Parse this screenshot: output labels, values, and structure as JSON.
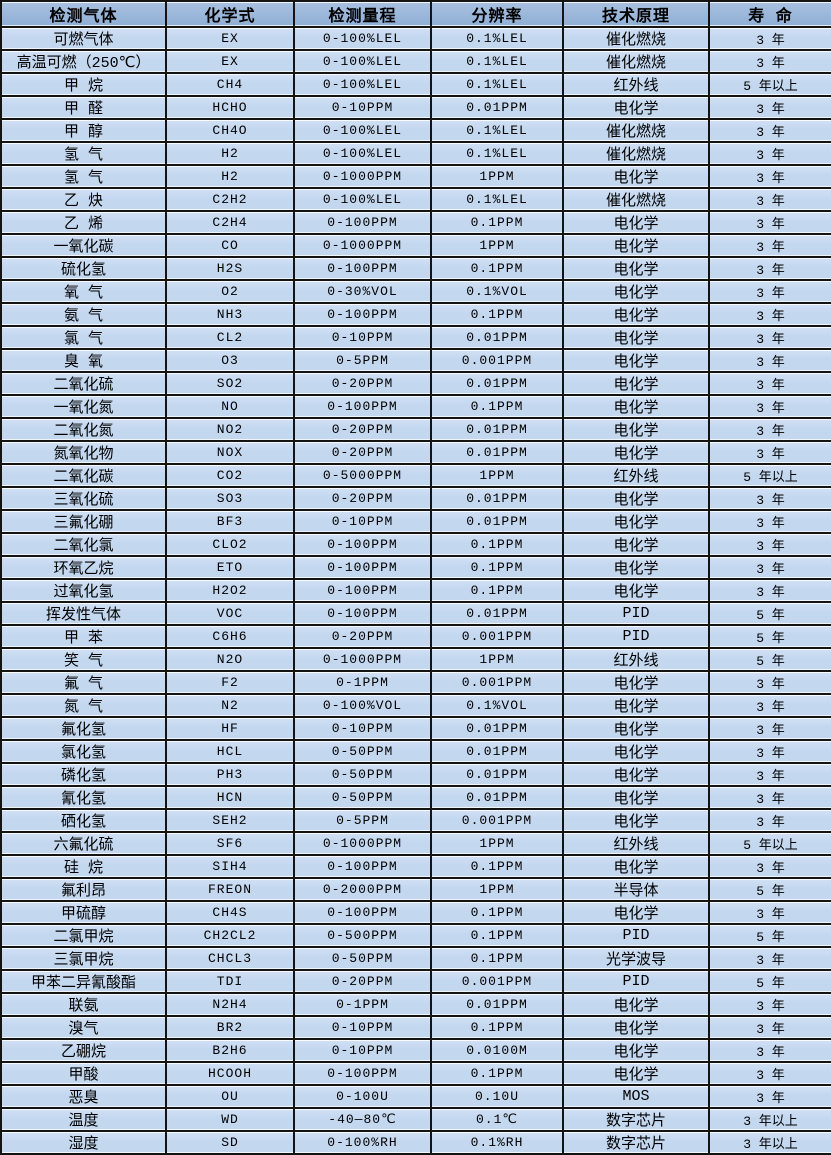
{
  "table": {
    "colors": {
      "header_bg": "#95b3d7",
      "row_bg": "#c5d9f1",
      "border": "#141414",
      "text": "#000000"
    },
    "headers": [
      "检测气体",
      "化学式",
      "检测量程",
      "分辨率",
      "技术原理",
      "寿 命"
    ],
    "column_keys": [
      "gas-name",
      "formula",
      "range",
      "resolution",
      "principle",
      "lifespan"
    ],
    "rows": [
      [
        "可燃气体",
        "EX",
        "0-100%LEL",
        "0.1%LEL",
        "催化燃烧",
        "3 年"
      ],
      [
        "高温可燃（250℃）",
        "EX",
        "0-100%LEL",
        "0.1%LEL",
        "催化燃烧",
        "3 年"
      ],
      [
        "甲 烷",
        "CH4",
        "0-100%LEL",
        "0.1%LEL",
        "红外线",
        "5 年以上"
      ],
      [
        "甲 醛",
        "HCHO",
        "0-10PPM",
        "0.01PPM",
        "电化学",
        "3 年"
      ],
      [
        "甲 醇",
        "CH4O",
        "0-100%LEL",
        "0.1%LEL",
        "催化燃烧",
        "3 年"
      ],
      [
        "氢 气",
        "H2",
        "0-100%LEL",
        "0.1%LEL",
        "催化燃烧",
        "3 年"
      ],
      [
        "氢 气",
        "H2",
        "0-1000PPM",
        "1PPM",
        "电化学",
        "3 年"
      ],
      [
        "乙 炔",
        "C2H2",
        "0-100%LEL",
        "0.1%LEL",
        "催化燃烧",
        "3 年"
      ],
      [
        "乙 烯",
        "C2H4",
        "0-100PPM",
        "0.1PPM",
        "电化学",
        "3 年"
      ],
      [
        "一氧化碳",
        "CO",
        "0-1000PPM",
        "1PPM",
        "电化学",
        "3 年"
      ],
      [
        "硫化氢",
        "H2S",
        "0-100PPM",
        "0.1PPM",
        "电化学",
        "3 年"
      ],
      [
        "氧 气",
        "O2",
        "0-30%VOL",
        "0.1%VOL",
        "电化学",
        "3 年"
      ],
      [
        "氨 气",
        "NH3",
        "0-100PPM",
        "0.1PPM",
        "电化学",
        "3 年"
      ],
      [
        "氯 气",
        "CL2",
        "0-10PPM",
        "0.01PPM",
        "电化学",
        "3 年"
      ],
      [
        "臭 氧",
        "O3",
        "0-5PPM",
        "0.001PPM",
        "电化学",
        "3 年"
      ],
      [
        "二氧化硫",
        "SO2",
        "0-20PPM",
        "0.01PPM",
        "电化学",
        "3 年"
      ],
      [
        "一氧化氮",
        "NO",
        "0-100PPM",
        "0.1PPM",
        "电化学",
        "3 年"
      ],
      [
        "二氧化氮",
        "NO2",
        "0-20PPM",
        "0.01PPM",
        "电化学",
        "3 年"
      ],
      [
        "氮氧化物",
        "NOX",
        "0-20PPM",
        "0.01PPM",
        "电化学",
        "3 年"
      ],
      [
        "二氧化碳",
        "CO2",
        "0-5000PPM",
        "1PPM",
        "红外线",
        "5 年以上"
      ],
      [
        "三氧化硫",
        "SO3",
        "0-20PPM",
        "0.01PPM",
        "电化学",
        "3 年"
      ],
      [
        "三氟化硼",
        "BF3",
        "0-10PPM",
        "0.01PPM",
        "电化学",
        "3 年"
      ],
      [
        "二氧化氯",
        "CLO2",
        "0-100PPM",
        "0.1PPM",
        "电化学",
        "3 年"
      ],
      [
        "环氧乙烷",
        "ETO",
        "0-100PPM",
        "0.1PPM",
        "电化学",
        "3 年"
      ],
      [
        "过氧化氢",
        "H2O2",
        "0-100PPM",
        "0.1PPM",
        "电化学",
        "3 年"
      ],
      [
        "挥发性气体",
        "VOC",
        "0-100PPM",
        "0.01PPM",
        "PID",
        "5 年"
      ],
      [
        "甲 苯",
        "C6H6",
        "0-20PPM",
        "0.001PPM",
        "PID",
        "5 年"
      ],
      [
        "笑 气",
        "N2O",
        "0-1000PPM",
        "1PPM",
        "红外线",
        "5 年"
      ],
      [
        "氟 气",
        "F2",
        "0-1PPM",
        "0.001PPM",
        "电化学",
        "3 年"
      ],
      [
        "氮 气",
        "N2",
        "0-100%VOL",
        "0.1%VOL",
        "电化学",
        "3 年"
      ],
      [
        "氟化氢",
        "HF",
        "0-10PPM",
        "0.01PPM",
        "电化学",
        "3 年"
      ],
      [
        "氯化氢",
        "HCL",
        "0-50PPM",
        "0.01PPM",
        "电化学",
        "3 年"
      ],
      [
        "磷化氢",
        "PH3",
        "0-50PPM",
        "0.01PPM",
        "电化学",
        "3 年"
      ],
      [
        "氰化氢",
        "HCN",
        "0-50PPM",
        "0.01PPM",
        "电化学",
        "3 年"
      ],
      [
        "硒化氢",
        "SEH2",
        "0-5PPM",
        "0.001PPM",
        "电化学",
        "3 年"
      ],
      [
        "六氟化硫",
        "SF6",
        "0-1000PPM",
        "1PPM",
        "红外线",
        "5 年以上"
      ],
      [
        "硅 烷",
        "SIH4",
        "0-100PPM",
        "0.1PPM",
        "电化学",
        "3 年"
      ],
      [
        "氟利昂",
        "FREON",
        "0-2000PPM",
        "1PPM",
        "半导体",
        "5 年"
      ],
      [
        "甲硫醇",
        "CH4S",
        "0-100PPM",
        "0.1PPM",
        "电化学",
        "3 年"
      ],
      [
        "二氯甲烷",
        "CH2CL2",
        "0-500PPM",
        "0.1PPM",
        "PID",
        "5 年"
      ],
      [
        "三氯甲烷",
        "CHCL3",
        "0-50PPM",
        "0.1PPM",
        "光学波导",
        "3 年"
      ],
      [
        "甲苯二异氰酸酯",
        "TDI",
        "0-20PPM",
        "0.001PPM",
        "PID",
        "5 年"
      ],
      [
        "联氨",
        "N2H4",
        "0-1PPM",
        "0.01PPM",
        "电化学",
        "3 年"
      ],
      [
        "溴气",
        "BR2",
        "0-10PPM",
        "0.1PPM",
        "电化学",
        "3 年"
      ],
      [
        "乙硼烷",
        "B2H6",
        "0-10PPM",
        "0.0100M",
        "电化学",
        "3 年"
      ],
      [
        "甲酸",
        "HCOOH",
        "0-100PPM",
        "0.1PPM",
        "电化学",
        "3 年"
      ],
      [
        "恶臭",
        "OU",
        "0-100U",
        "0.10U",
        "MOS",
        "3 年"
      ],
      [
        "温度",
        "WD",
        "-40—80℃",
        "0.1℃",
        "数字芯片",
        "3 年以上"
      ],
      [
        "湿度",
        "SD",
        "0-100%RH",
        "0.1%RH",
        "数字芯片",
        "3 年以上"
      ]
    ]
  }
}
